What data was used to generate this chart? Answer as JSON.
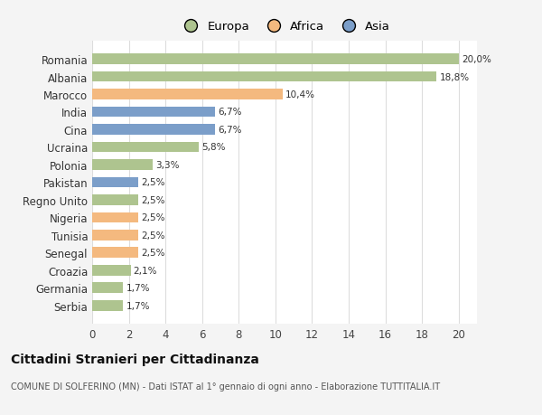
{
  "countries": [
    "Romania",
    "Albania",
    "Marocco",
    "India",
    "Cina",
    "Ucraina",
    "Polonia",
    "Pakistan",
    "Regno Unito",
    "Nigeria",
    "Tunisia",
    "Senegal",
    "Croazia",
    "Germania",
    "Serbia"
  ],
  "values": [
    20.0,
    18.8,
    10.4,
    6.7,
    6.7,
    5.8,
    3.3,
    2.5,
    2.5,
    2.5,
    2.5,
    2.5,
    2.1,
    1.7,
    1.7
  ],
  "labels": [
    "20,0%",
    "18,8%",
    "10,4%",
    "6,7%",
    "6,7%",
    "5,8%",
    "3,3%",
    "2,5%",
    "2,5%",
    "2,5%",
    "2,5%",
    "2,5%",
    "2,1%",
    "1,7%",
    "1,7%"
  ],
  "continents": [
    "Europa",
    "Europa",
    "Africa",
    "Asia",
    "Asia",
    "Europa",
    "Europa",
    "Asia",
    "Europa",
    "Africa",
    "Africa",
    "Africa",
    "Europa",
    "Europa",
    "Europa"
  ],
  "colors": {
    "Europa": "#aec48f",
    "Africa": "#f4b97f",
    "Asia": "#7b9ec9"
  },
  "xlim": [
    0,
    21
  ],
  "xticks": [
    0,
    2,
    4,
    6,
    8,
    10,
    12,
    14,
    16,
    18,
    20
  ],
  "title": "Cittadini Stranieri per Cittadinanza",
  "subtitle": "COMUNE DI SOLFERINO (MN) - Dati ISTAT al 1° gennaio di ogni anno - Elaborazione TUTTITALIA.IT",
  "bg_color": "#f4f4f4",
  "plot_bg_color": "#ffffff",
  "grid_color": "#dddddd",
  "bar_height": 0.6
}
